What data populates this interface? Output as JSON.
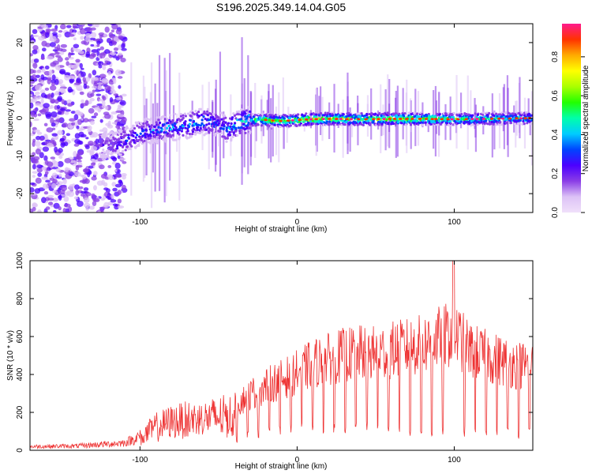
{
  "title": "S196.2025.349.14.04.G05",
  "colorbar": {
    "label": "Normalized spectral amplitude",
    "ticks": [
      "0.0",
      "0.2",
      "0.4",
      "0.6",
      "0.8"
    ],
    "tick_values": [
      0.0,
      0.2,
      0.4,
      0.6,
      0.8
    ],
    "range": [
      0,
      0.97
    ],
    "colors": [
      "#f0e0fa",
      "#dcc2f6",
      "#8a3de6",
      "#4b00ff",
      "#0044ff",
      "#00ccff",
      "#00ffaa",
      "#22ff00",
      "#aaff00",
      "#ffff00",
      "#ffaa00",
      "#ff3300",
      "#ff1a8c"
    ]
  },
  "chart_data": [
    {
      "type": "heatmap",
      "name": "spectrogram",
      "title": "S196.2025.349.14.04.G05",
      "xlabel": "Height of straight line (km)",
      "ylabel": "Frequency (Hz)",
      "xlim": [
        -170,
        150
      ],
      "ylim": [
        -25,
        25
      ],
      "xticks": [
        -100,
        0,
        100
      ],
      "xtick_labels": [
        "-100",
        "0",
        "100"
      ],
      "yticks": [
        -20,
        -10,
        0,
        10,
        20
      ],
      "ytick_labels": [
        "-20",
        "-10",
        "0",
        "10",
        "20"
      ],
      "ridge_x": [
        -122,
        -115,
        -110,
        -105,
        -100,
        -90,
        -80,
        -70,
        -62,
        -55,
        -50,
        -45,
        -40,
        -35,
        -30,
        -20,
        -10,
        0,
        10,
        20,
        40,
        60,
        80,
        100,
        120,
        150
      ],
      "ridge_freq": [
        -7,
        -7,
        -6,
        -5,
        -4,
        -3,
        -2.5,
        -2,
        -1,
        -1,
        -1.5,
        -3,
        -2,
        -1,
        -0.5,
        -0.5,
        -0.8,
        -0.5,
        -0.3,
        -0.2,
        -0.3,
        -0.2,
        -0.2,
        -0.3,
        -0.2,
        0
      ],
      "ridge_amplitude": [
        0.2,
        0.25,
        0.3,
        0.3,
        0.3,
        0.35,
        0.35,
        0.35,
        0.4,
        0.35,
        0.3,
        0.35,
        0.4,
        0.45,
        0.5,
        0.6,
        0.6,
        0.65,
        0.65,
        0.65,
        0.6,
        0.65,
        0.6,
        0.55,
        0.5,
        0.45
      ]
    },
    {
      "type": "line",
      "name": "snr",
      "xlabel": "Height of straight line (km)",
      "ylabel": "SNR (10 * v/v)",
      "xlim": [
        -170,
        150
      ],
      "ylim": [
        0,
        1000
      ],
      "xticks": [
        -100,
        0,
        100
      ],
      "xtick_labels": [
        "-100",
        "0",
        "100"
      ],
      "yticks": [
        0,
        200,
        400,
        600,
        800,
        1000
      ],
      "ytick_labels": [
        "0",
        "200",
        "400",
        "600",
        "800",
        "1000"
      ],
      "color": "#ee3333",
      "envelope_x": [
        -170,
        -140,
        -110,
        -100,
        -90,
        -80,
        -70,
        -60,
        -50,
        -40,
        -30,
        -20,
        -10,
        0,
        10,
        20,
        30,
        40,
        50,
        60,
        70,
        80,
        90,
        100,
        110,
        120,
        130,
        140,
        150
      ],
      "envelope_peak": [
        30,
        35,
        60,
        110,
        200,
        240,
        260,
        260,
        290,
        300,
        380,
        440,
        480,
        530,
        590,
        620,
        650,
        660,
        660,
        680,
        700,
        720,
        760,
        800,
        680,
        640,
        610,
        580,
        580
      ],
      "envelope_floor": [
        10,
        10,
        10,
        20,
        40,
        60,
        60,
        80,
        60,
        60,
        90,
        100,
        110,
        120,
        130,
        120,
        130,
        130,
        130,
        120,
        110,
        120,
        100,
        110,
        110,
        110,
        110,
        100,
        110
      ],
      "dropout_period_km": 6.9,
      "max_value": 1030
    }
  ]
}
